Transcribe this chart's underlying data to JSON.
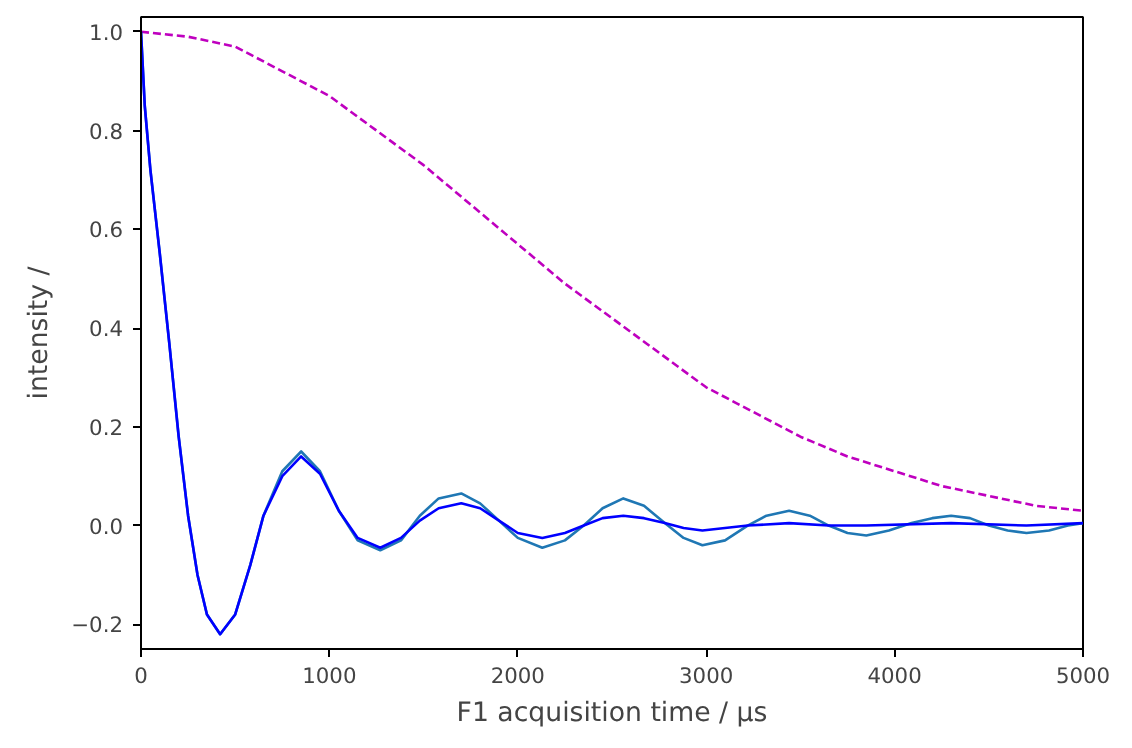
{
  "chart_data": {
    "type": "line",
    "xlabel": "F1 acquisition time / µs",
    "ylabel": "intensity /",
    "xlim": [
      0,
      5000
    ],
    "ylim": [
      -0.25,
      1.03
    ],
    "xticks": [
      0,
      1000,
      2000,
      3000,
      4000,
      5000
    ],
    "yticks": [
      {
        "value": -0.2,
        "label": "−0.2"
      },
      {
        "value": 0,
        "label": "0.0"
      },
      {
        "value": 0.2,
        "label": "0.2"
      },
      {
        "value": 0.4,
        "label": "0.4"
      },
      {
        "value": 0.6,
        "label": "0.6"
      },
      {
        "value": 0.8,
        "label": "0.8"
      },
      {
        "value": 1.0,
        "label": "1.0"
      }
    ],
    "grid": false,
    "marker": "none",
    "series": [
      {
        "color": "#bf00bf",
        "line_style": "dashed",
        "x": [
          0,
          250,
          500,
          750,
          1000,
          1250,
          1500,
          1750,
          2000,
          2250,
          2500,
          2750,
          3000,
          3250,
          3500,
          3750,
          4000,
          4250,
          4500,
          4750,
          5000
        ],
        "values": [
          1.0,
          0.99,
          0.97,
          0.92,
          0.87,
          0.8,
          0.73,
          0.65,
          0.57,
          0.49,
          0.42,
          0.35,
          0.28,
          0.23,
          0.18,
          0.14,
          0.11,
          0.08,
          0.06,
          0.04,
          0.03
        ]
      },
      {
        "color": "#1f77b4",
        "line_style": "solid",
        "x": [
          0,
          20,
          50,
          100,
          150,
          200,
          250,
          300,
          350,
          420,
          500,
          580,
          650,
          750,
          850,
          950,
          1050,
          1150,
          1270,
          1380,
          1480,
          1580,
          1700,
          1800,
          1900,
          2000,
          2130,
          2250,
          2350,
          2450,
          2560,
          2670,
          2780,
          2880,
          2980,
          3100,
          3220,
          3320,
          3440,
          3550,
          3650,
          3750,
          3850,
          3970,
          4090,
          4200,
          4300,
          4400,
          4500,
          4600,
          4700,
          4820,
          4920,
          5000
        ],
        "values": [
          1.0,
          0.85,
          0.72,
          0.55,
          0.37,
          0.18,
          0.02,
          -0.1,
          -0.18,
          -0.22,
          -0.18,
          -0.08,
          0.02,
          0.11,
          0.15,
          0.11,
          0.03,
          -0.03,
          -0.05,
          -0.03,
          0.02,
          0.055,
          0.065,
          0.045,
          0.01,
          -0.025,
          -0.045,
          -0.03,
          0.0,
          0.035,
          0.055,
          0.04,
          0.005,
          -0.025,
          -0.04,
          -0.03,
          0.0,
          0.02,
          0.03,
          0.02,
          0.0,
          -0.015,
          -0.02,
          -0.01,
          0.005,
          0.015,
          0.02,
          0.015,
          0.0,
          -0.01,
          -0.015,
          -0.01,
          0.0,
          0.005
        ]
      },
      {
        "color": "#0000ff",
        "line_style": "solid",
        "x": [
          0,
          20,
          50,
          100,
          150,
          200,
          250,
          300,
          350,
          420,
          500,
          580,
          650,
          750,
          850,
          950,
          1050,
          1150,
          1270,
          1380,
          1480,
          1580,
          1700,
          1800,
          1900,
          2000,
          2130,
          2250,
          2350,
          2450,
          2560,
          2670,
          2780,
          2880,
          2980,
          3100,
          3220,
          3440,
          3650,
          3850,
          4300,
          4700,
          5000
        ],
        "values": [
          1.0,
          0.85,
          0.72,
          0.55,
          0.37,
          0.18,
          0.02,
          -0.1,
          -0.18,
          -0.22,
          -0.18,
          -0.08,
          0.02,
          0.1,
          0.14,
          0.105,
          0.03,
          -0.025,
          -0.045,
          -0.025,
          0.01,
          0.035,
          0.045,
          0.035,
          0.01,
          -0.015,
          -0.025,
          -0.015,
          0.0,
          0.015,
          0.02,
          0.015,
          0.005,
          -0.005,
          -0.01,
          -0.005,
          0.0,
          0.005,
          0.0,
          0.0,
          0.005,
          0.0,
          0.005
        ]
      }
    ]
  }
}
